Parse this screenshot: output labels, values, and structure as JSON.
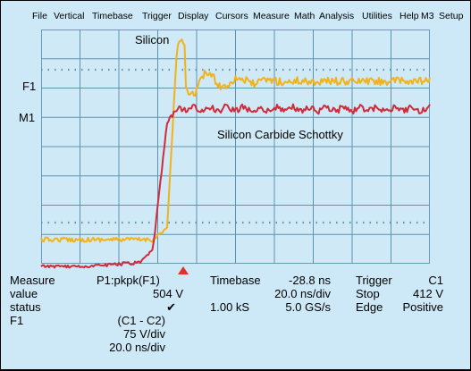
{
  "menu": [
    "File",
    "Vertical",
    "Timebase",
    "Trigger",
    "Display",
    "Cursors",
    "Measure",
    "Math",
    "Analysis",
    "Utilities",
    "Help",
    "M3",
    "Setup"
  ],
  "channels": {
    "f1": "F1",
    "m1": "M1"
  },
  "traces": {
    "silicon": "Silicon",
    "sic": "Silicon Carbide Schottky"
  },
  "colors": {
    "bg": "#cde9f7",
    "grid": "#5f93ad",
    "f1": "#f2b21a",
    "m1": "#cf2b3a",
    "marker": "#e0302a"
  },
  "measure": {
    "title": "Measure",
    "param": "P1:pkpk(F1)",
    "value_label": "value",
    "value": "504 V",
    "status_label": "status",
    "status": "✔",
    "f1_label": "F1",
    "f1_math": "(C1 - C2)",
    "f1_vdiv": "75 V/div",
    "f1_tdiv": "20.0 ns/div"
  },
  "timebase": {
    "label": "Timebase",
    "delay": "-28.8 ns",
    "tdiv": "20.0 ns/div",
    "samples": "1.00 kS",
    "rate": "5.0 GS/s"
  },
  "trigger": {
    "label": "Trigger",
    "source": "C1",
    "mode": "Stop",
    "level": "412 V",
    "type": "Edge",
    "slope": "Positive"
  }
}
